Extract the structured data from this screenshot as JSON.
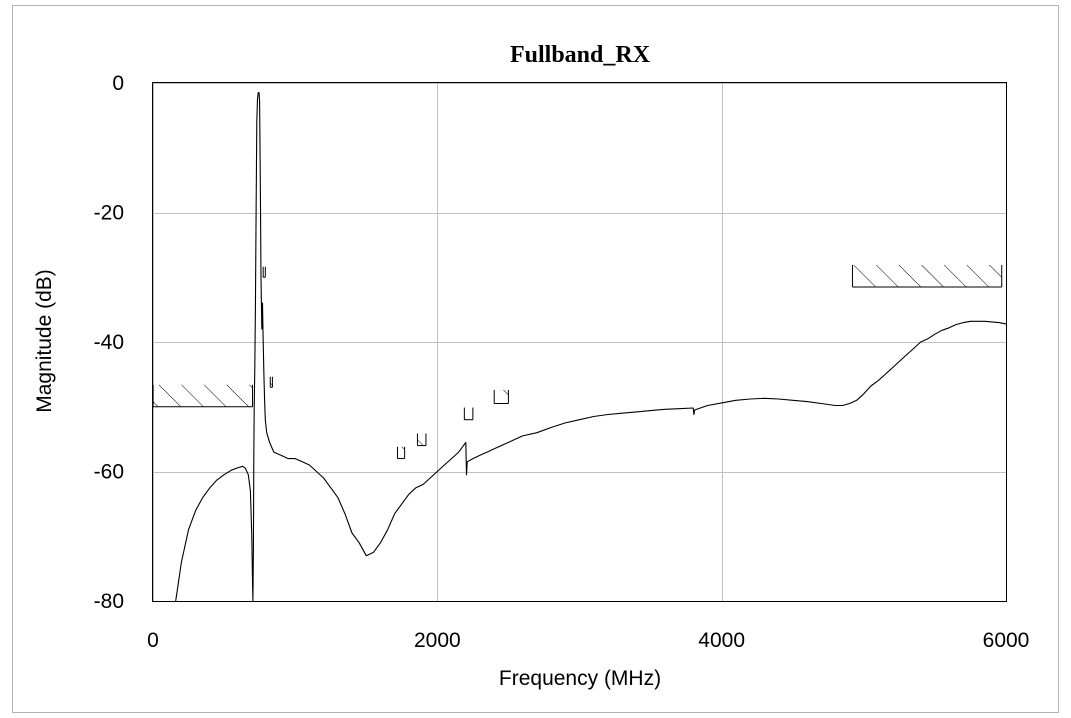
{
  "chart_data": {
    "type": "line",
    "title": "Fullband_RX",
    "xlabel": "Frequency (MHz)",
    "ylabel": "Magnitude (dB)",
    "xlim": [
      0,
      6000
    ],
    "ylim": [
      -80,
      0
    ],
    "x_ticks": [
      0,
      2000,
      4000,
      6000
    ],
    "y_ticks": [
      0,
      -20,
      -40,
      -60,
      -80
    ],
    "x_tick_labels": [
      "0",
      "2000",
      "4000",
      "6000"
    ],
    "y_tick_labels": [
      "0",
      "-20",
      "-40",
      "-60",
      "-80"
    ],
    "grid": true,
    "legend": "none",
    "colors": {
      "trace": "#000000",
      "grid": "#c0c0c0",
      "frame": "#b4b4b4"
    },
    "series": [
      {
        "values": [
          [
            160,
            -80
          ],
          [
            200,
            -74
          ],
          [
            250,
            -69
          ],
          [
            300,
            -66
          ],
          [
            350,
            -64
          ],
          [
            400,
            -62.5
          ],
          [
            450,
            -61.3
          ],
          [
            500,
            -60.5
          ],
          [
            550,
            -59.8
          ],
          [
            600,
            -59.4
          ],
          [
            630,
            -59.2
          ],
          [
            650,
            -59.5
          ],
          [
            670,
            -60.5
          ],
          [
            685,
            -63
          ],
          [
            695,
            -70
          ],
          [
            700,
            -77
          ],
          [
            703,
            -80
          ],
          [
            706,
            -72
          ],
          [
            709,
            -58
          ],
          [
            712,
            -50
          ],
          [
            716,
            -44
          ],
          [
            720,
            -35
          ],
          [
            725,
            -20
          ],
          [
            730,
            -6
          ],
          [
            735,
            -2.5
          ],
          [
            740,
            -1.5
          ],
          [
            746,
            -1.5
          ],
          [
            750,
            -3
          ],
          [
            755,
            -15
          ],
          [
            760,
            -30
          ],
          [
            765,
            -38
          ],
          [
            770,
            -34
          ],
          [
            775,
            -40
          ],
          [
            780,
            -45
          ],
          [
            785,
            -49
          ],
          [
            790,
            -52
          ],
          [
            800,
            -54
          ],
          [
            820,
            -55.5
          ],
          [
            850,
            -57
          ],
          [
            900,
            -57.5
          ],
          [
            950,
            -58
          ],
          [
            1000,
            -58
          ],
          [
            1050,
            -58.5
          ],
          [
            1100,
            -59
          ],
          [
            1150,
            -60
          ],
          [
            1200,
            -61
          ],
          [
            1250,
            -62.5
          ],
          [
            1300,
            -64
          ],
          [
            1350,
            -66.5
          ],
          [
            1400,
            -69.5
          ],
          [
            1450,
            -71
          ],
          [
            1500,
            -73
          ],
          [
            1550,
            -72.5
          ],
          [
            1600,
            -71
          ],
          [
            1650,
            -69
          ],
          [
            1700,
            -66.5
          ],
          [
            1750,
            -65
          ],
          [
            1800,
            -63.5
          ],
          [
            1850,
            -62.5
          ],
          [
            1900,
            -62
          ],
          [
            1950,
            -61
          ],
          [
            2000,
            -60
          ],
          [
            2050,
            -59
          ],
          [
            2100,
            -58
          ],
          [
            2150,
            -57
          ],
          [
            2200,
            -55.5
          ],
          [
            2205,
            -60.5
          ],
          [
            2210,
            -58.5
          ],
          [
            2250,
            -58
          ],
          [
            2300,
            -57.5
          ],
          [
            2350,
            -57
          ],
          [
            2400,
            -56.5
          ],
          [
            2450,
            -56
          ],
          [
            2500,
            -55.5
          ],
          [
            2550,
            -55
          ],
          [
            2600,
            -54.5
          ],
          [
            2700,
            -54
          ],
          [
            2800,
            -53.2
          ],
          [
            2900,
            -52.5
          ],
          [
            3000,
            -52
          ],
          [
            3100,
            -51.5
          ],
          [
            3200,
            -51.2
          ],
          [
            3300,
            -51
          ],
          [
            3400,
            -50.8
          ],
          [
            3500,
            -50.6
          ],
          [
            3600,
            -50.4
          ],
          [
            3700,
            -50.3
          ],
          [
            3800,
            -50.2
          ],
          [
            3805,
            -51.2
          ],
          [
            3810,
            -50.5
          ],
          [
            3900,
            -49.8
          ],
          [
            4000,
            -49.4
          ],
          [
            4100,
            -49
          ],
          [
            4200,
            -48.8
          ],
          [
            4300,
            -48.7
          ],
          [
            4400,
            -48.8
          ],
          [
            4500,
            -49
          ],
          [
            4600,
            -49.2
          ],
          [
            4700,
            -49.5
          ],
          [
            4800,
            -49.8
          ],
          [
            4850,
            -49.8
          ],
          [
            4900,
            -49.5
          ],
          [
            4950,
            -49
          ],
          [
            5000,
            -48
          ],
          [
            5050,
            -46.8
          ],
          [
            5100,
            -46
          ],
          [
            5150,
            -45
          ],
          [
            5200,
            -44
          ],
          [
            5250,
            -43
          ],
          [
            5300,
            -42
          ],
          [
            5350,
            -41
          ],
          [
            5400,
            -40
          ],
          [
            5450,
            -39.5
          ],
          [
            5500,
            -38.8
          ],
          [
            5550,
            -38.2
          ],
          [
            5600,
            -37.8
          ],
          [
            5650,
            -37.3
          ],
          [
            5700,
            -37
          ],
          [
            5750,
            -36.8
          ],
          [
            5800,
            -36.8
          ],
          [
            5850,
            -36.8
          ],
          [
            5900,
            -36.9
          ],
          [
            5950,
            -37
          ],
          [
            6000,
            -37.2
          ]
        ]
      }
    ],
    "limit_masks": [
      {
        "x_start": 0,
        "x_end": 700,
        "level": -50
      },
      {
        "x_start": 775,
        "x_end": 790,
        "level": -30
      },
      {
        "x_start": 825,
        "x_end": 840,
        "level": -47
      },
      {
        "x_start": 1720,
        "x_end": 1770,
        "level": -58
      },
      {
        "x_start": 1860,
        "x_end": 1920,
        "level": -56
      },
      {
        "x_start": 2190,
        "x_end": 2250,
        "level": -52
      },
      {
        "x_start": 2400,
        "x_end": 2500,
        "level": -49.5
      },
      {
        "x_start": 4920,
        "x_end": 5970,
        "level": -31.5
      }
    ]
  }
}
